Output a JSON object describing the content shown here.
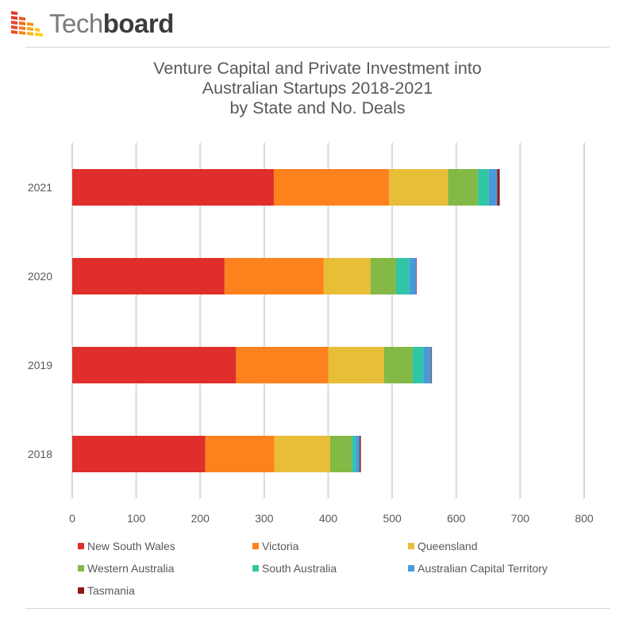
{
  "brand": {
    "name_light": "Tech",
    "name_bold": "board",
    "logo_icon": "grid-tiles-logo-icon"
  },
  "chart_data": {
    "type": "bar",
    "orientation": "horizontal",
    "stacked": true,
    "title_lines": [
      "Venture Capital and Private Investment into",
      "Australian Startups 2018-2021",
      "by State and No. Deals"
    ],
    "xlabel": "",
    "ylabel": "",
    "xlim": [
      0,
      800
    ],
    "x_ticks": [
      "0",
      "100",
      "200",
      "300",
      "400",
      "500",
      "600",
      "700",
      "800"
    ],
    "grid": true,
    "legend_position": "bottom",
    "categories": [
      "2021",
      "2020",
      "2019",
      "2018"
    ],
    "series": [
      {
        "name": "New South Wales",
        "color": "#e02f2a",
        "values": [
          315,
          238,
          256,
          208
        ]
      },
      {
        "name": "Victoria",
        "color": "#fd821e",
        "values": [
          180,
          155,
          144,
          108
        ]
      },
      {
        "name": "Queensland",
        "color": "#e8bd37",
        "values": [
          92,
          73,
          87,
          87
        ]
      },
      {
        "name": "Western Australia",
        "color": "#83b944",
        "values": [
          47,
          40,
          45,
          34
        ]
      },
      {
        "name": "South Australia",
        "color": "#31c5a7",
        "values": [
          17,
          21,
          17,
          6
        ]
      },
      {
        "name": "Australian Capital Territory",
        "color": "#4a9ad9",
        "values": [
          13,
          10,
          12,
          6
        ]
      },
      {
        "name": "Tasmania",
        "color": "#8f1a1a",
        "values": [
          4,
          1,
          1,
          2
        ]
      }
    ]
  }
}
